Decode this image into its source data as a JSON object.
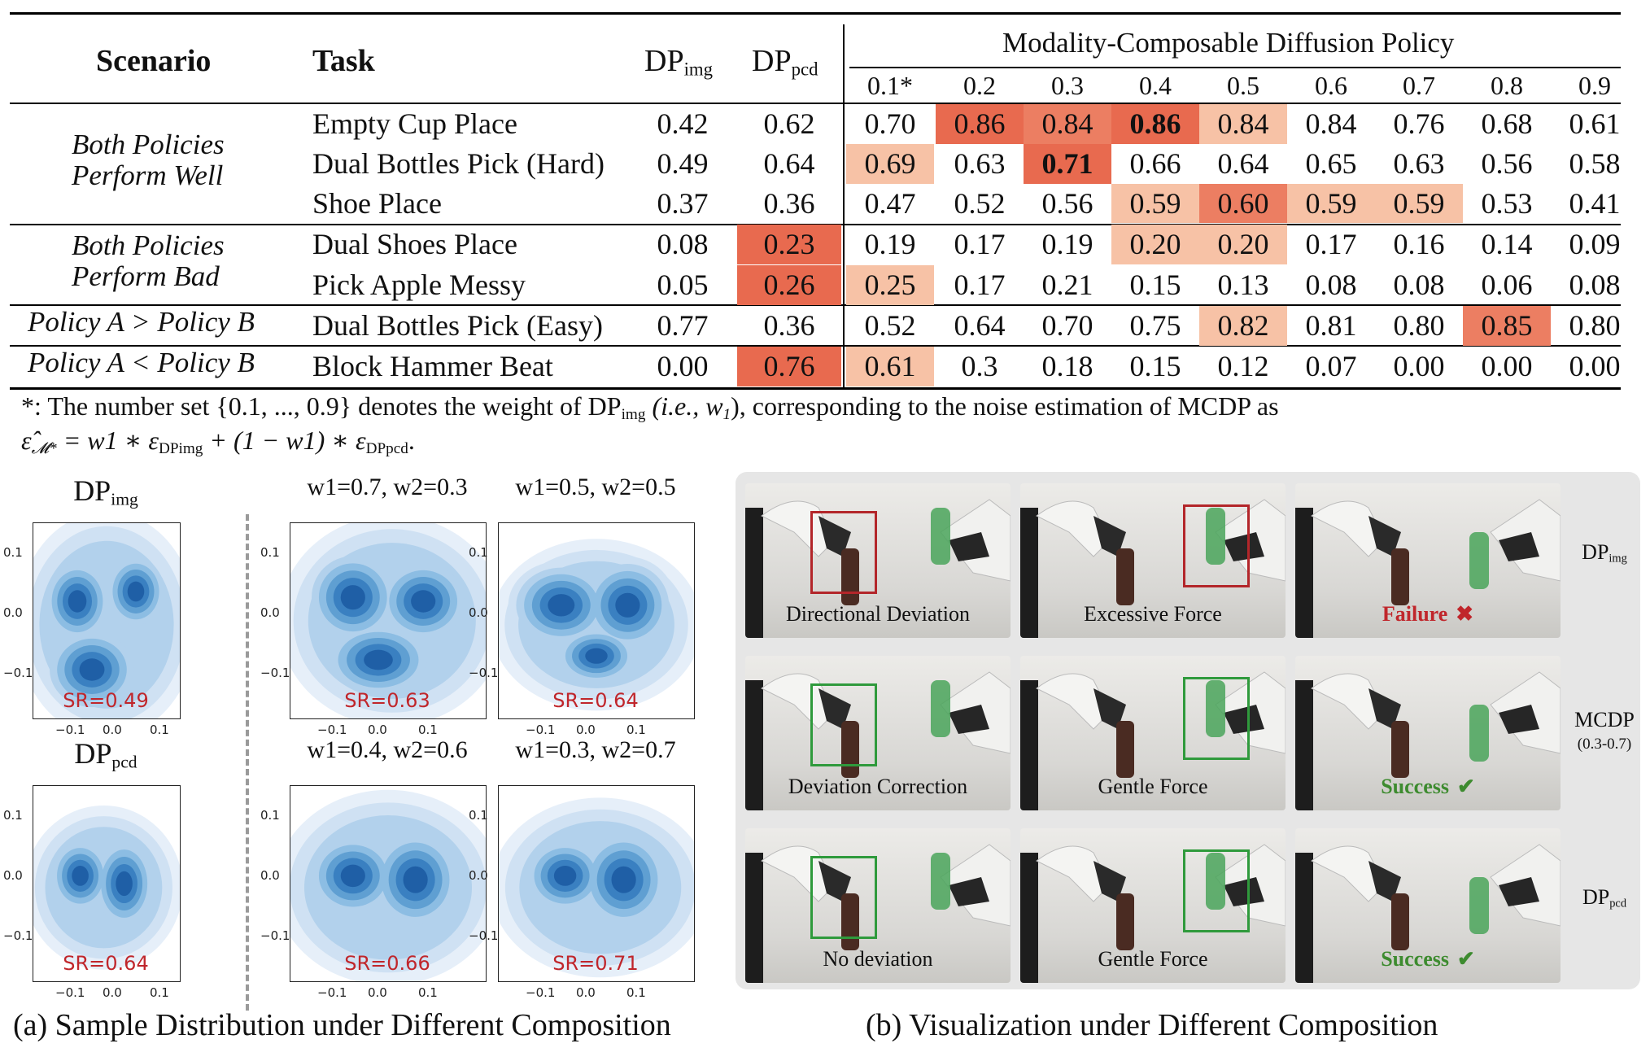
{
  "table": {
    "header": {
      "scenario": "Scenario",
      "task": "Task",
      "dp_img": "DP",
      "dp_img_sub": "img",
      "dp_pcd": "DP",
      "dp_pcd_sub": "pcd",
      "mcdp_group": "Modality-Composable Diffusion Policy",
      "weights": [
        "0.1*",
        "0.2",
        "0.3",
        "0.4",
        "0.5",
        "0.6",
        "0.7",
        "0.8",
        "0.9"
      ]
    },
    "groups": [
      {
        "scenario_lines": [
          "Both Policies",
          "Perform Well"
        ]
      },
      {
        "scenario_lines": [
          "Both Policies",
          "Perform Bad"
        ]
      },
      {
        "scenario_lines": [
          "Policy A  > Policy B"
        ]
      },
      {
        "scenario_lines": [
          "Policy A  < Policy B"
        ]
      }
    ],
    "rows": [
      {
        "task": "Empty Cup Place",
        "dp_img": "0.42",
        "dp_pcd": "0.62",
        "vals": [
          "0.70",
          "0.86",
          "0.84",
          "0.86",
          "0.84",
          "0.84",
          "0.76",
          "0.68",
          "0.61"
        ],
        "hl": [
          0,
          3,
          2,
          3,
          1,
          0,
          0,
          0,
          0
        ],
        "bold": [
          3
        ]
      },
      {
        "task": "Dual Bottles Pick (Hard)",
        "dp_img": "0.49",
        "dp_pcd": "0.64",
        "vals": [
          "0.69",
          "0.63",
          "0.71",
          "0.66",
          "0.64",
          "0.65",
          "0.63",
          "0.56",
          "0.58"
        ],
        "hl": [
          1,
          0,
          3,
          0,
          0,
          0,
          0,
          0,
          0
        ],
        "bold": [
          2
        ]
      },
      {
        "task": "Shoe Place",
        "dp_img": "0.37",
        "dp_pcd": "0.36",
        "vals": [
          "0.47",
          "0.52",
          "0.56",
          "0.59",
          "0.60",
          "0.59",
          "0.59",
          "0.53",
          "0.41"
        ],
        "hl": [
          0,
          0,
          0,
          1,
          2,
          1,
          1,
          0,
          0
        ],
        "bold": []
      },
      {
        "task": "Dual Shoes Place",
        "dp_img": "0.08",
        "dp_pcd": "0.23",
        "vals": [
          "0.19",
          "0.17",
          "0.19",
          "0.20",
          "0.20",
          "0.17",
          "0.16",
          "0.14",
          "0.09"
        ],
        "hl": [
          0,
          0,
          0,
          1,
          1,
          0,
          0,
          0,
          0
        ],
        "bold": [],
        "pcd_hl": true
      },
      {
        "task": "Pick Apple Messy",
        "dp_img": "0.05",
        "dp_pcd": "0.26",
        "vals": [
          "0.25",
          "0.17",
          "0.21",
          "0.15",
          "0.13",
          "0.08",
          "0.08",
          "0.06",
          "0.08"
        ],
        "hl": [
          1,
          0,
          0,
          0,
          0,
          0,
          0,
          0,
          0
        ],
        "bold": [],
        "pcd_hl": true
      },
      {
        "task": "Dual Bottles Pick (Easy)",
        "dp_img": "0.77",
        "dp_pcd": "0.36",
        "vals": [
          "0.52",
          "0.64",
          "0.70",
          "0.75",
          "0.82",
          "0.81",
          "0.80",
          "0.85",
          "0.80"
        ],
        "hl": [
          0,
          0,
          0,
          0,
          1,
          0,
          0,
          2,
          0
        ],
        "bold": []
      },
      {
        "task": "Block Hammer Beat",
        "dp_img": "0.00",
        "dp_pcd": "0.76",
        "vals": [
          "0.61",
          "0.3",
          "0.18",
          "0.15",
          "0.12",
          "0.07",
          "0.00",
          "0.00",
          "0.00"
        ],
        "hl": [
          1,
          0,
          0,
          0,
          0,
          0,
          0,
          0,
          0
        ],
        "bold": [],
        "pcd_hl": true
      }
    ],
    "footnote_line1": "*: The number set {0.1, ..., 0.9} denotes the weight of DP",
    "footnote_line1_sub": "img",
    "footnote_line1_b": " (i.e., w",
    "footnote_line1_c": "1",
    "footnote_line1_d": "), corresponding to the noise estimation of MCDP as",
    "footnote_line2": "ε̂",
    "footnote_line2_b": " = w1 ∗ ε",
    "footnote_line2_c": " + (1 − w1) ∗ ε",
    "footnote_line2_d": "."
  },
  "panel_a": {
    "caption": "(a) Sample Distribution under Different Composition",
    "plots": [
      {
        "title": "DP",
        "sub": "img",
        "sr": "SR=0.49"
      },
      {
        "title": "w1=0.7, w2=0.3",
        "sr": "SR=0.63"
      },
      {
        "title": "w1=0.5, w2=0.5",
        "sr": "SR=0.64"
      },
      {
        "title": "DP",
        "sub": "pcd",
        "sr": "SR=0.64"
      },
      {
        "title": "w1=0.4, w2=0.6",
        "sr": "SR=0.66"
      },
      {
        "title": "w1=0.3, w2=0.7",
        "sr": "SR=0.71"
      }
    ],
    "yticks": [
      "0.1",
      "0.0",
      "−0.1"
    ],
    "xticks": [
      "−0.1",
      "0.0",
      "0.1"
    ]
  },
  "panel_b": {
    "caption": "(b) Visualization under Different Composition",
    "rows": [
      {
        "labels": [
          "Directional Deviation",
          "Excessive Force",
          "Failure"
        ],
        "side": "DP",
        "side_sub": "img",
        "status": "fail"
      },
      {
        "labels": [
          "Deviation Correction",
          "Gentle Force",
          "Success"
        ],
        "side": "MCDP",
        "side_sub2": "(0.3-0.7)",
        "status": "ok"
      },
      {
        "labels": [
          "No deviation",
          "Gentle Force",
          "Success"
        ],
        "side": "DP",
        "side_sub": "pcd",
        "status": "ok"
      }
    ]
  },
  "colors": {
    "hl_light": "#f7c2a6",
    "hl_mid": "#ec7e62",
    "hl_dark": "#e86a4f",
    "kde": "#1f5fa6",
    "fail": "#c0262b",
    "success": "#3d8b2f"
  }
}
